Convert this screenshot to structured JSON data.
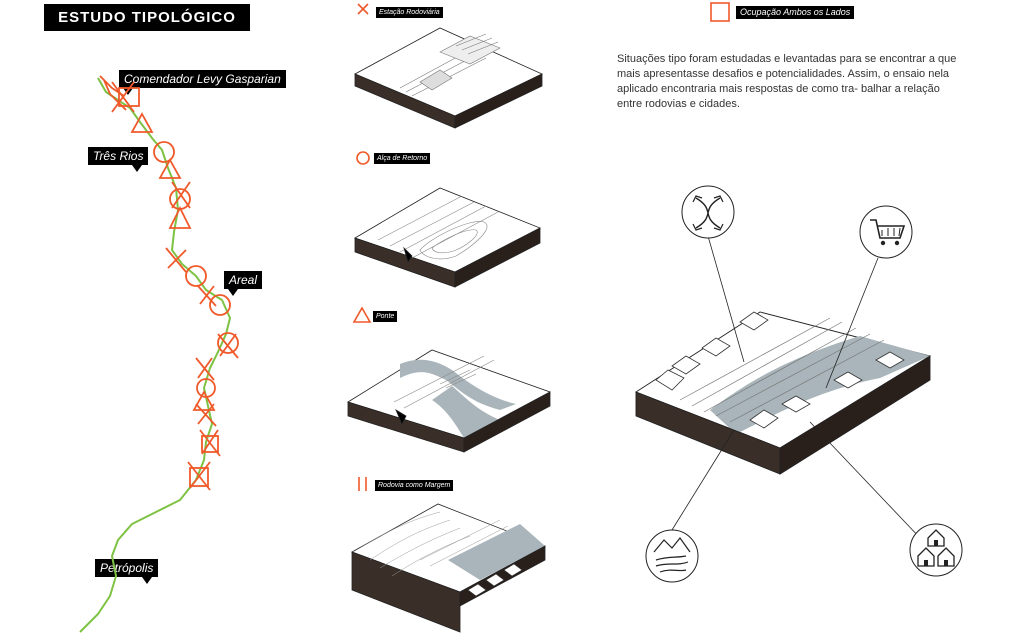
{
  "header": {
    "title": "ESTUDO TIPOLÓGICO"
  },
  "map": {
    "places": [
      "Comendador Levy Gasparian",
      "Três Rios",
      "Areal",
      "Petrópolis"
    ],
    "route_color": "#7dc242",
    "marker_color": "#f0592a"
  },
  "typologies": [
    {
      "symbol": "x-mark",
      "label": "Estação Rodoviária"
    },
    {
      "symbol": "circle",
      "label": "Alça de Retorno"
    },
    {
      "symbol": "triangle",
      "label": "Ponte"
    },
    {
      "symbol": "double-bar",
      "label": "Rodovia como Margem"
    },
    {
      "symbol": "square",
      "label": "Ocupação Ambos os Lados"
    }
  ],
  "description": "Situações tipo foram estudadas e levantadas para se encontrar a que mais apresentasse desafios e potencialidades. Assim, o ensaio nela aplicado encontraria mais respostas de como tra- balhar a relação entre rodovias e cidades.",
  "icons": [
    "arrows-exchange-icon",
    "shopping-cart-icon",
    "river-landscape-icon",
    "houses-icon"
  ]
}
